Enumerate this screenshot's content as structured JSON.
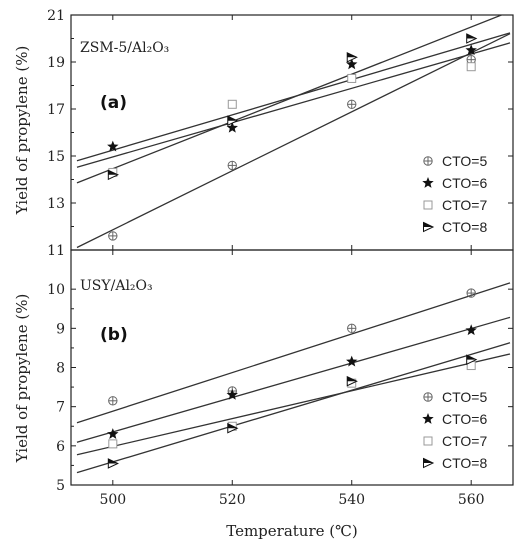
{
  "figure": {
    "xlabel": "Temperature (℃)",
    "ylabel": "Yield of propylene (%)"
  },
  "chart_data": [
    {
      "type": "scatter",
      "panel_tag": "(a)",
      "title": "ZSM-5/Al₂O₃",
      "xlabel": "",
      "ylabel": "Yield of propylene (%)",
      "xlim": [
        493,
        567
      ],
      "ylim": [
        11,
        21
      ],
      "x_ticks": [],
      "y_ticks": [
        11,
        13,
        15,
        17,
        19,
        21
      ],
      "legend_position": "bottom-right",
      "fit_lines": true,
      "x": [
        500,
        520,
        540,
        560
      ],
      "series": [
        {
          "name": "CTO=5",
          "marker": "circle-plus",
          "values": [
            11.6,
            14.6,
            17.2,
            19.1
          ]
        },
        {
          "name": "CTO=6",
          "marker": "star",
          "values": [
            15.4,
            16.2,
            18.9,
            19.5
          ]
        },
        {
          "name": "CTO=7",
          "marker": "square-open",
          "values": [
            14.3,
            17.2,
            18.3,
            18.8
          ]
        },
        {
          "name": "CTO=8",
          "marker": "triangle-right",
          "values": [
            14.2,
            16.5,
            19.2,
            20.0
          ]
        }
      ]
    },
    {
      "type": "scatter",
      "panel_tag": "(b)",
      "title": "USY/Al₂O₃",
      "xlabel": "Temperature (℃)",
      "ylabel": "Yield of propylene (%)",
      "xlim": [
        493,
        567
      ],
      "ylim": [
        5,
        11
      ],
      "x_ticks": [
        500,
        520,
        540,
        560
      ],
      "y_ticks": [
        5,
        6,
        7,
        8,
        9,
        10
      ],
      "legend_position": "bottom-right",
      "fit_lines": true,
      "x": [
        500,
        520,
        540,
        560
      ],
      "series": [
        {
          "name": "CTO=5",
          "marker": "circle-plus",
          "values": [
            7.15,
            7.4,
            9.0,
            9.9
          ]
        },
        {
          "name": "CTO=6",
          "marker": "star",
          "values": [
            6.3,
            7.3,
            8.15,
            8.95
          ]
        },
        {
          "name": "CTO=7",
          "marker": "square-open",
          "values": [
            6.05,
            6.5,
            7.6,
            8.05
          ]
        },
        {
          "name": "CTO=8",
          "marker": "triangle-right",
          "values": [
            5.55,
            6.45,
            7.65,
            8.2
          ]
        }
      ]
    }
  ]
}
